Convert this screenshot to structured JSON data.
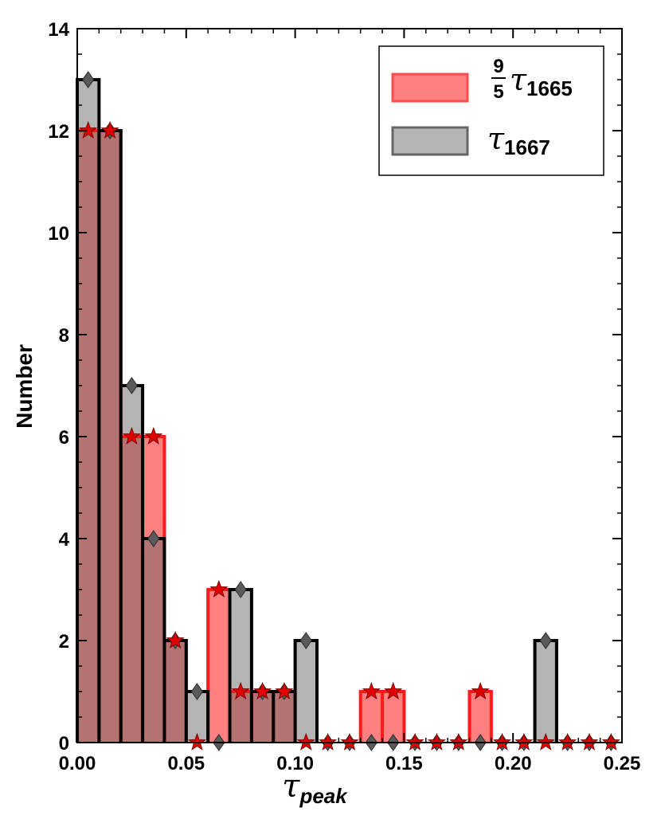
{
  "chart_data": {
    "type": "bar",
    "xlabel_symbol": "τ",
    "xlabel_sub": "peak",
    "ylabel": "Number",
    "xlim": [
      0.0,
      0.25
    ],
    "ylim": [
      0,
      14
    ],
    "bin_width": 0.01,
    "bin_starts": [
      0.0,
      0.01,
      0.02,
      0.03,
      0.04,
      0.05,
      0.06,
      0.07,
      0.08,
      0.09,
      0.1,
      0.11,
      0.12,
      0.13,
      0.14,
      0.15,
      0.16,
      0.17,
      0.18,
      0.19,
      0.2,
      0.21,
      0.22,
      0.23,
      0.24
    ],
    "x_ticks": [
      "0.00",
      "0.05",
      "0.10",
      "0.15",
      "0.20",
      "0.25"
    ],
    "y_ticks": [
      "0",
      "2",
      "4",
      "6",
      "8",
      "10",
      "12",
      "14"
    ],
    "series": [
      {
        "key": "tau1665",
        "legend_frac_top": "9",
        "legend_frac_bottom": "5",
        "legend_symbol": "τ",
        "legend_sub": "1665",
        "fill": "#ff8080",
        "edge": "#ff1a1a",
        "marker": "star",
        "marker_color": "#e00000",
        "values": [
          12,
          12,
          6,
          6,
          2,
          0,
          3,
          1,
          1,
          1,
          0,
          0,
          0,
          1,
          1,
          0,
          0,
          0,
          1,
          0,
          0,
          0,
          0,
          0,
          0
        ]
      },
      {
        "key": "tau1667",
        "legend_symbol": "τ",
        "legend_sub": "1667",
        "fill": "#b4b4b4",
        "edge": "#000000",
        "marker": "diamond",
        "marker_color": "#5a5a5a",
        "values": [
          13,
          12,
          7,
          4,
          2,
          1,
          0,
          3,
          1,
          1,
          2,
          0,
          0,
          0,
          0,
          0,
          0,
          0,
          0,
          0,
          0,
          2,
          0,
          0,
          0
        ]
      }
    ],
    "overlap_color": "#b37373",
    "legend_position": "top-right",
    "grid": false
  }
}
